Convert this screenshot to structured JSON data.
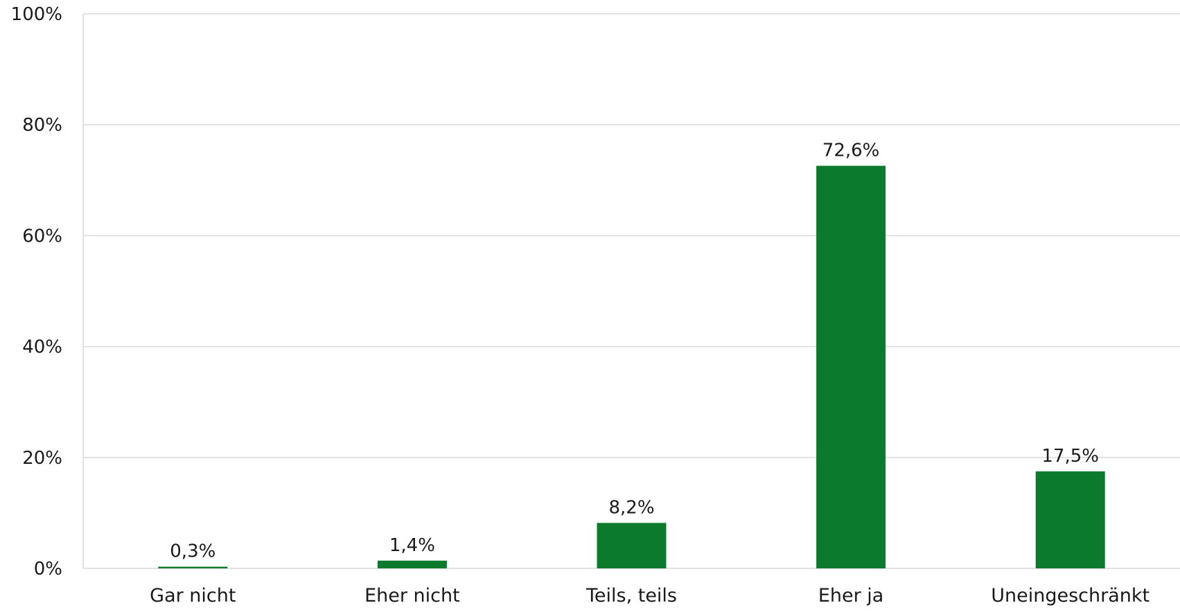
{
  "chart_data": {
    "type": "bar",
    "categories": [
      "Gar nicht",
      "Eher nicht",
      "Teils, teils",
      "Eher ja",
      "Uneingeschränkt"
    ],
    "values": [
      0.3,
      1.4,
      8.2,
      72.6,
      17.5
    ],
    "data_labels": [
      "0,3%",
      "1,4%",
      "8,2%",
      "72,6%",
      "17,5%"
    ],
    "y_ticks": [
      0,
      20,
      40,
      60,
      80,
      100
    ],
    "y_tick_labels": [
      "0%",
      "20%",
      "40%",
      "60%",
      "80%",
      "100%"
    ],
    "ylim": [
      0,
      100
    ],
    "grid": true,
    "legend": "none",
    "bar_color": "#0c7a2c",
    "grid_color": "#d9d9d9"
  }
}
